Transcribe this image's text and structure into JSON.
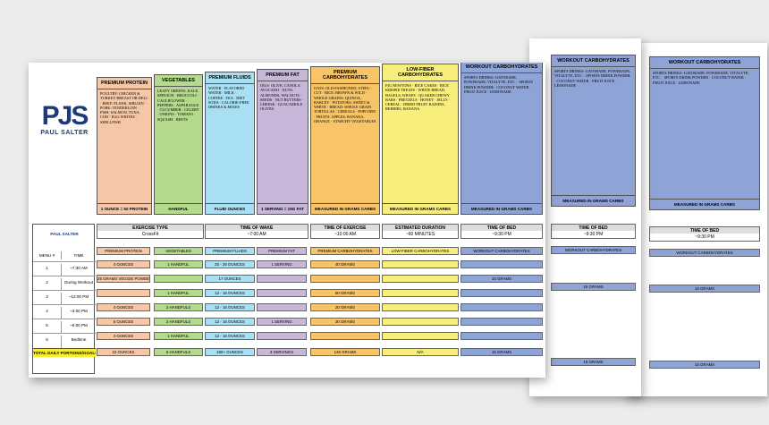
{
  "brand": {
    "logo": "PJS",
    "name": "PAUL SALTER"
  },
  "categories": [
    {
      "title": "PREMIUM PROTEIN",
      "color": "#f5c7a6",
      "footer": "1 OUNCE = 50 PROTEIN",
      "items": "POULTRY: CHICKEN & TURKEY BREAST OR DELI · BEEF: FLANK, SIRLOIN · PORK: TENDERLOIN · FISH: SALMON, TUNA, COD · EGG WHITES · SHELLFISH"
    },
    {
      "title": "VEGETABLES",
      "color": "#b5d98d",
      "footer": "HANDFUL",
      "items": "LEAFY GREENS, KALE, SPINACH · BROCCOLI · CAULIFLOWER · PEPPERS · ASPARAGUS · CUCUMBER · CELERY · ONIONS · TOMATO · SQUASH · BEETS"
    },
    {
      "title": "PREMIUM FLUIDS",
      "color": "#a9dff2",
      "footer": "FLUID OUNCES",
      "items": "WATER · FLAVORED WATER · MILK · COFFEE · TEA · DIET SODA · CALORIE-FREE DRINKS & MIXES"
    },
    {
      "title": "PREMIUM FAT",
      "color": "#c8b7d9",
      "footer": "1 SERVING = 15G FAT",
      "items": "OILS: OLIVE, CANOLA · AVOCADO · NUTS: ALMONDS, WALNUTS · SEEDS · NUT BUTTERS · CHEESE · GUACAMOLE · OLIVES"
    },
    {
      "title": "PREMIUM CARBOHYDRATES",
      "color": "#f7c468",
      "footer": "MEASURED IN GRAMS CARBS",
      "items": "OATS: OLD-FASHIONED, STEEL-CUT · RICE: BROWN & WILD · WHOLE GRAINS: QUINOA, BARLEY · POTATOES: SWEET & WHITE · BREAD: WHOLE GRAIN · TORTILLAS · CEREALS · POPCORN · FRUITS: APPLES, BANANA, ORANGE · STARCHY VEGETABLES"
    },
    {
      "title": "LOW-FIBER CARBOHYDRATES",
      "color": "#f7ee7c",
      "footer": "MEASURED IN GRAMS CARBS",
      "items": "FIG NEWTONS · RICE CAKES · RICE KRISPIE TREATS · WHITE BREAD, BAGELS, WRAPS · QUAKER CHEWY BARS · PRETZELS · HONEY · JELLY · CEREAL · DRIED FRUIT: RAISINS, BERRIES, BANANA"
    },
    {
      "title": "WORKOUT CARBOHYDRATES",
      "color": "#8fa4d6",
      "footer": "MEASURED IN GRAMS CARBS",
      "items": "SPORTS DRINKS: GATORADE, POWERADE, VITALYTE, ETC. · SPORTS DRINK POWDER · COCONUT WATER · FRUIT JUICE · LEMONADE"
    }
  ],
  "plan": {
    "name": "PAUL SALTER",
    "exercise_type_label": "EXERCISE TYPE",
    "exercise_type": "CrossFit",
    "wake_label": "TIME OF WAKE",
    "wake": "~7:00 AM",
    "exercise_time_label": "TIME OF EXERCISE",
    "exercise_time": "~10:00 AM",
    "duration_label": "ESTIMATED DURATION",
    "duration": "~60 MINUTES",
    "bed_label": "TIME OF BED",
    "bed": "~9:30 PM",
    "menu_label": "MENU #",
    "time_label": "TIME",
    "total_label": "TOTAL DAILY PORTIONS/GOALS",
    "meals": [
      {
        "num": "1",
        "time": "~7:30 AM"
      },
      {
        "num": "2",
        "time": "During Workout"
      },
      {
        "num": "3",
        "time": "~12:00 PM"
      },
      {
        "num": "4",
        "time": "~3:00 PM"
      },
      {
        "num": "5",
        "time": "~6:00 PM"
      },
      {
        "num": "6",
        "time": "Bedtime"
      }
    ],
    "columns": [
      {
        "label": "PREMIUM PROTEIN",
        "color": "#f5c7a6",
        "cells": [
          "4 OUNCES",
          "25 GRAMS VEGGIE POWDER",
          "",
          "4 OUNCES",
          "5 OUNCES",
          "4 OUNCES"
        ],
        "total": "22 OUNCES"
      },
      {
        "label": "VEGETABLES",
        "color": "#b5d98d",
        "cells": [
          "1 HANDFUL",
          "",
          "1 HANDFUL",
          "2 HANDFULS",
          "2 HANDFULS",
          "1 HANDFUL"
        ],
        "total": "6 HANDFULS"
      },
      {
        "label": "PREMIUM FLUIDS",
        "color": "#a9dff2",
        "cells": [
          "20 - 26 OUNCES",
          "17 OUNCES",
          "12 - 16 OUNCES",
          "12 - 16 OUNCES",
          "12 - 16 OUNCES",
          "12 - 16 OUNCES"
        ],
        "total": "150+ OUNCES"
      },
      {
        "label": "PREMIUM FAT",
        "color": "#c8b7d9",
        "cells": [
          "1 SERVING",
          "",
          "",
          "",
          "1 SERVING",
          ""
        ],
        "total": "3 SERVINGS"
      },
      {
        "label": "PREMIUM CARBOHYDRATES",
        "color": "#f7c468",
        "cells": [
          "40 GRAMS",
          "",
          "60 GRAMS",
          "20 GRAMS",
          "30 GRAMS",
          ""
        ],
        "total": "145 GRAMS"
      },
      {
        "label": "LOW-FIBER CARBOHYDRATES",
        "color": "#f7ee7c",
        "cells": [
          "",
          "",
          "",
          "",
          "",
          ""
        ],
        "total": "N/A"
      },
      {
        "label": "WORKOUT CARBOHYDRATES",
        "color": "#8fa4d6",
        "cells": [
          "",
          "15 GRAMS",
          "",
          "",
          "",
          ""
        ],
        "total": "15 GRAMS"
      }
    ]
  },
  "back_sheets": [
    {
      "title": "WORKOUT CARBOHYDRATES",
      "footer": "MEASURED IN GRAMS CARBS",
      "bed_label": "TIME OF BED",
      "bed": "~9:30 PM",
      "col": "WORKOUT CARBOHYDRATES",
      "mid": "15 GRAMS",
      "total": "15 GRAMS"
    },
    {
      "title": "WORKOUT CARBOHYDRATES",
      "footer": "MEASURED IN GRAMS CARBS",
      "bed_label": "TIME OF BED",
      "bed": "~9:30 PM",
      "col": "WORKOUT CARBOHYDRATES",
      "mid": "15 GRAMS",
      "total": "15 GRAMS"
    }
  ]
}
